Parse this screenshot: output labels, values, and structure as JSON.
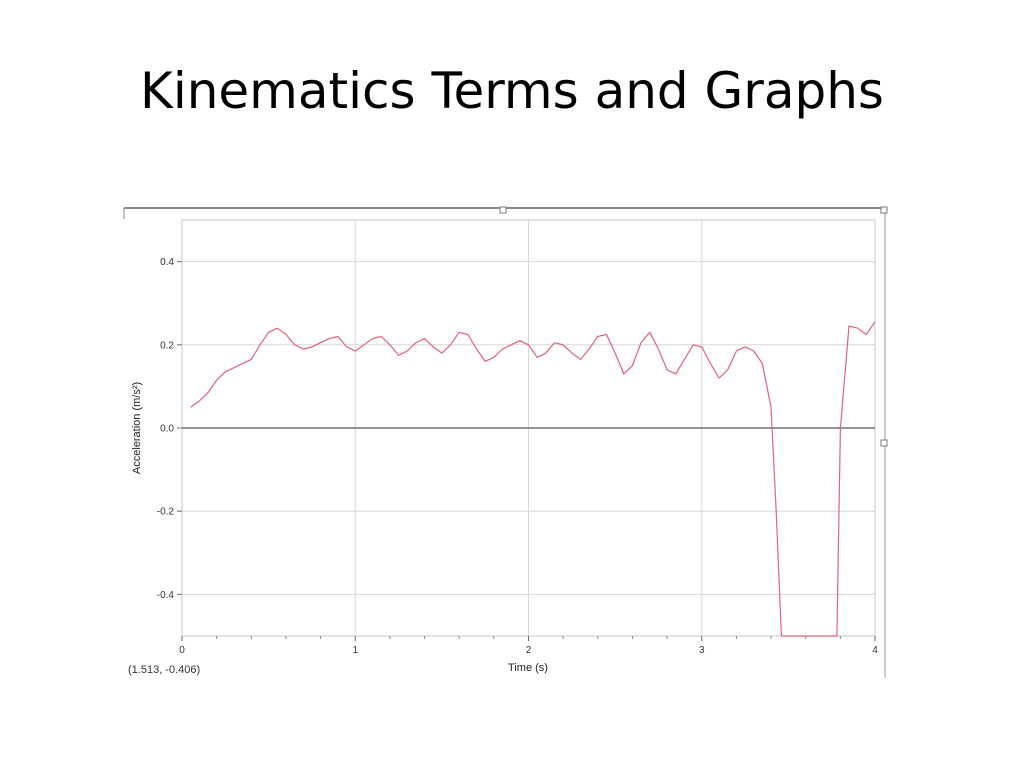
{
  "slide": {
    "title": "Kinematics Terms and Graphs"
  },
  "colors": {
    "series": "#e8607a",
    "zero_line": "#555555",
    "grid": "#d8d8d8",
    "frame": "#9a9a9a"
  },
  "chart_data": {
    "type": "line",
    "xlabel": "Time (s)",
    "ylabel": "Acceleration (m/s²)",
    "xlim": [
      0,
      4
    ],
    "ylim": [
      -0.5,
      0.5
    ],
    "x_ticks": [
      "0",
      "1",
      "2",
      "3",
      "4"
    ],
    "y_ticks": [
      "0.4",
      "0.2",
      "0.0",
      "-0.2",
      "-0.4"
    ],
    "grid": true,
    "readout": "(1.513, -0.406)",
    "series": [
      {
        "x": [
          0.05,
          0.1,
          0.15,
          0.2,
          0.25,
          0.3,
          0.35,
          0.4,
          0.45,
          0.5,
          0.55,
          0.6,
          0.65,
          0.7,
          0.75,
          0.8,
          0.85,
          0.9,
          0.95,
          1.0,
          1.05,
          1.1,
          1.15,
          1.2,
          1.25,
          1.3,
          1.35,
          1.4,
          1.45,
          1.5,
          1.55,
          1.6,
          1.65,
          1.7,
          1.75,
          1.8,
          1.85,
          1.9,
          1.95,
          2.0,
          2.05,
          2.1,
          2.15,
          2.2,
          2.25,
          2.3,
          2.35,
          2.4,
          2.45,
          2.5,
          2.55,
          2.6,
          2.65,
          2.7,
          2.75,
          2.8,
          2.85,
          2.9,
          2.95,
          3.0,
          3.05,
          3.1,
          3.15,
          3.2,
          3.25,
          3.3,
          3.35,
          3.4,
          3.43,
          3.46,
          3.78,
          3.8,
          3.85,
          3.9,
          3.95,
          4.0
        ],
        "y": [
          0.05,
          0.065,
          0.085,
          0.115,
          0.135,
          0.145,
          0.155,
          0.165,
          0.2,
          0.23,
          0.24,
          0.225,
          0.2,
          0.19,
          0.195,
          0.205,
          0.215,
          0.22,
          0.195,
          0.185,
          0.2,
          0.215,
          0.22,
          0.2,
          0.175,
          0.185,
          0.205,
          0.215,
          0.195,
          0.18,
          0.2,
          0.23,
          0.225,
          0.19,
          0.16,
          0.17,
          0.19,
          0.2,
          0.21,
          0.2,
          0.17,
          0.18,
          0.205,
          0.2,
          0.18,
          0.165,
          0.19,
          0.22,
          0.225,
          0.18,
          0.13,
          0.15,
          0.205,
          0.23,
          0.19,
          0.14,
          0.13,
          0.165,
          0.2,
          0.195,
          0.155,
          0.12,
          0.14,
          0.185,
          0.195,
          0.185,
          0.155,
          0.05,
          -0.2,
          -0.5,
          -0.5,
          0.0,
          0.245,
          0.24,
          0.225,
          0.255
        ]
      }
    ]
  }
}
